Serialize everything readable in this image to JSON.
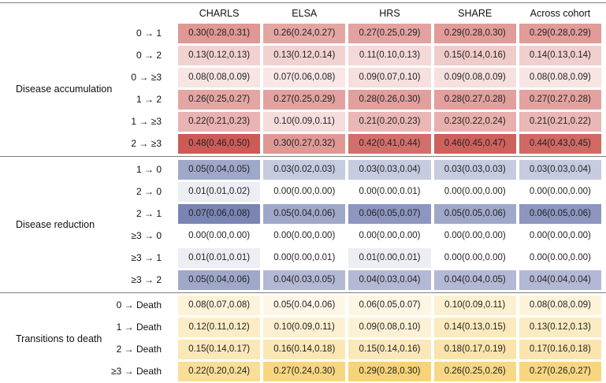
{
  "chart_data": {
    "type": "heatmap",
    "title": "",
    "columns": [
      "CHARLS",
      "ELSA",
      "HRS",
      "SHARE",
      "Across cohort"
    ],
    "colormap_note": "each section shades from white (0) to its own dark color at section max",
    "sections": [
      {
        "name": "Disease accumulation",
        "color_dark": "#CD5A56",
        "scale": {
          "min": 0,
          "max": 0.48
        },
        "rows": [
          {
            "label": "0 → 1",
            "values": [
              0.3,
              0.26,
              0.27,
              0.29,
              0.29
            ],
            "text": [
              "0.30(0.28,0.31)",
              "0.26(0.24,0.27)",
              "0.27(0.25,0.29)",
              "0.29(0.28,0.30)",
              "0.29(0.28,0.29)"
            ]
          },
          {
            "label": "0 → 2",
            "values": [
              0.13,
              0.13,
              0.11,
              0.15,
              0.14
            ],
            "text": [
              "0.13(0.12,0.13)",
              "0.13(0.12,0.14)",
              "0.11(0.10,0.13)",
              "0.15(0.14,0.16)",
              "0.14(0.13,0.14)"
            ]
          },
          {
            "label": "0 → ≥3",
            "values": [
              0.08,
              0.07,
              0.09,
              0.09,
              0.08
            ],
            "text": [
              "0.08(0.08,0.09)",
              "0.07(0.06,0.08)",
              "0.09(0.07,0.10)",
              "0.09(0.08,0.09)",
              "0.08(0.08,0.09)"
            ]
          },
          {
            "label": "1 → 2",
            "values": [
              0.26,
              0.27,
              0.28,
              0.28,
              0.27
            ],
            "text": [
              "0.26(0.25,0.27)",
              "0.27(0.25,0.29)",
              "0.28(0.26,0.30)",
              "0.28(0.27,0.28)",
              "0.27(0.27,0.28)"
            ]
          },
          {
            "label": "1 → ≥3",
            "values": [
              0.22,
              0.1,
              0.21,
              0.23,
              0.21
            ],
            "text": [
              "0.22(0.21,0.23)",
              "0.10(0.09,0.11)",
              "0.21(0.20,0.23)",
              "0.23(0.22,0.24)",
              "0.21(0.21,0.22)"
            ]
          },
          {
            "label": "2 → ≥3",
            "values": [
              0.48,
              0.3,
              0.42,
              0.46,
              0.44
            ],
            "text": [
              "0.48(0.46,0.50)",
              "0.30(0.27,0.32)",
              "0.42(0.41,0.44)",
              "0.46(0.45,0.47)",
              "0.44(0.43,0.45)"
            ]
          }
        ]
      },
      {
        "name": "Disease reduction",
        "color_dark": "#7A85B4",
        "scale": {
          "min": 0,
          "max": 0.07
        },
        "rows": [
          {
            "label": "1 → 0",
            "values": [
              0.05,
              0.03,
              0.03,
              0.03,
              0.03
            ],
            "text": [
              "0.05(0.04,0.05)",
              "0.03(0.02,0.03)",
              "0.03(0.03,0.04)",
              "0.03(0.03,0.03)",
              "0.03(0.03,0.04)"
            ]
          },
          {
            "label": "2 → 0",
            "values": [
              0.01,
              0.0,
              0.0,
              0.0,
              0.0
            ],
            "text": [
              "0.01(0.01,0.02)",
              "0.00(0.00,0.00)",
              "0.00(0.00,0.01)",
              "0.00(0.00,0.00)",
              "0.00(0.00,0.00)"
            ]
          },
          {
            "label": "2 → 1",
            "values": [
              0.07,
              0.05,
              0.06,
              0.05,
              0.06
            ],
            "text": [
              "0.07(0.06,0.08)",
              "0.05(0.04,0.06)",
              "0.06(0.05,0.07)",
              "0.05(0.05,0.06)",
              "0.06(0.05,0.06)"
            ]
          },
          {
            "label": "≥3 → 0",
            "values": [
              0.0,
              0.0,
              0.0,
              0.0,
              0.0
            ],
            "text": [
              "0.00(0.00,0.00)",
              "0.00(0.00,0.00)",
              "0.00(0.00,0.00)",
              "0.00(0.00,0.00)",
              "0.00(0.00,0.00)"
            ]
          },
          {
            "label": "≥3 → 1",
            "values": [
              0.01,
              0.0,
              0.01,
              0.0,
              0.0
            ],
            "text": [
              "0.01(0.01,0.01)",
              "0.00(0.00,0.01)",
              "0.01(0.00,0.01)",
              "0.00(0.00,0.00)",
              "0.00(0.00,0.00)"
            ]
          },
          {
            "label": "≥3 → 2",
            "values": [
              0.05,
              0.04,
              0.04,
              0.04,
              0.04
            ],
            "text": [
              "0.05(0.04,0.06)",
              "0.04(0.03,0.05)",
              "0.04(0.03,0.04)",
              "0.04(0.04,0.05)",
              "0.04(0.04,0.04)"
            ]
          }
        ]
      },
      {
        "name": "Transitions to death",
        "color_dark": "#F7D377",
        "scale": {
          "min": 0,
          "max": 0.29
        },
        "rows": [
          {
            "label": "0 → Death",
            "values": [
              0.08,
              0.05,
              0.06,
              0.1,
              0.08
            ],
            "text": [
              "0.08(0.07,0.08)",
              "0.05(0.04,0.06)",
              "0.06(0.05,0.07)",
              "0.10(0.09,0.11)",
              "0.08(0.08,0.09)"
            ]
          },
          {
            "label": "1 → Death",
            "values": [
              0.12,
              0.1,
              0.09,
              0.14,
              0.13
            ],
            "text": [
              "0.12(0.11,0.12)",
              "0.10(0.09,0.11)",
              "0.09(0.08,0.10)",
              "0.14(0.13,0.15)",
              "0.13(0.12,0.13)"
            ]
          },
          {
            "label": "2 → Death",
            "values": [
              0.15,
              0.16,
              0.15,
              0.18,
              0.17
            ],
            "text": [
              "0.15(0.14,0.17)",
              "0.16(0.14,0.18)",
              "0.15(0.14,0.16)",
              "0.18(0.17,0.19)",
              "0.17(0.16,0.18)"
            ]
          },
          {
            "label": "≥3 → Death",
            "values": [
              0.22,
              0.27,
              0.29,
              0.26,
              0.27
            ],
            "text": [
              "0.22(0.20,0.24)",
              "0.27(0.24,0.30)",
              "0.29(0.28,0.30)",
              "0.26(0.25,0.26)",
              "0.27(0.26,0.27)"
            ]
          }
        ]
      }
    ],
    "line_color": "#7d7d7d"
  }
}
